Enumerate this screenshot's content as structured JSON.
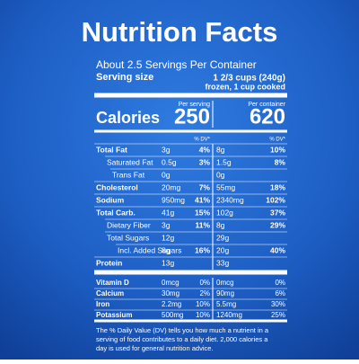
{
  "title": "Nutrition Facts",
  "servings": "About 2.5 Servings Per Container",
  "serving_size": {
    "label": "Serving size",
    "lines": [
      "1 2/3 cups (240g)",
      "frozen, 1 cup cooked"
    ]
  },
  "columns": [
    "Per serving",
    "Per container"
  ],
  "calories": {
    "label": "Calories",
    "per_serving": "250",
    "per_container": "620"
  },
  "dv_header": [
    "% DV*",
    "% DV*"
  ],
  "nutrients": [
    {
      "label": "Total Fat",
      "serving": [
        "3g",
        "4%"
      ],
      "container": [
        "8g",
        "10%"
      ]
    },
    {
      "label": "Saturated Fat",
      "serving": [
        "0.5g",
        "3%"
      ],
      "container": [
        "1.5g",
        "8%"
      ]
    },
    {
      "label": "Trans Fat",
      "serving": [
        "0g"
      ],
      "container": [
        "0g"
      ]
    },
    {
      "label": "Cholesterol",
      "serving": [
        "20mg",
        "7%"
      ],
      "container": [
        "55mg",
        "18%"
      ]
    },
    {
      "label": "Sodium",
      "serving": [
        "950mg",
        "41%"
      ],
      "container": [
        "2340mg",
        "102%"
      ]
    },
    {
      "label": "Total Carb.",
      "serving": [
        "41g",
        "15%"
      ],
      "container": [
        "102g",
        "37%"
      ]
    },
    {
      "label": "Dietary Fiber",
      "serving": [
        "3g",
        "11%"
      ],
      "container": [
        "8g",
        "29%"
      ]
    },
    {
      "label": "Total Sugars",
      "serving": [
        "12g"
      ],
      "container": [
        "29g"
      ]
    },
    {
      "label": "Incl. Added Sugars",
      "serving": [
        "8g",
        "16%"
      ],
      "container": [
        "20g",
        "40%"
      ]
    },
    {
      "label": "Protein",
      "serving": [
        "13g"
      ],
      "container": [
        "33g"
      ]
    }
  ],
  "vitamins": [
    {
      "label": "Vitamin D",
      "serving": [
        "0mcg",
        "0%"
      ],
      "container": [
        "0mcg",
        "0%"
      ]
    },
    {
      "label": "Calcium",
      "serving": [
        "30mg",
        "2%"
      ],
      "container": [
        "90mg",
        "6%"
      ]
    },
    {
      "label": "Iron",
      "serving": [
        "2.2mg",
        "10%"
      ],
      "container": [
        "5.5mg",
        "30%"
      ]
    },
    {
      "label": "Potassium",
      "serving": [
        "500mg",
        "10%"
      ],
      "container": [
        "1240mg",
        "25%"
      ]
    }
  ],
  "footnote": [
    "The % Daily Value (DV) tells you how much a nutrient in a",
    "serving of food contributes to a daily diet. 2,000 calories a",
    "day is used for general nutrition advice."
  ]
}
